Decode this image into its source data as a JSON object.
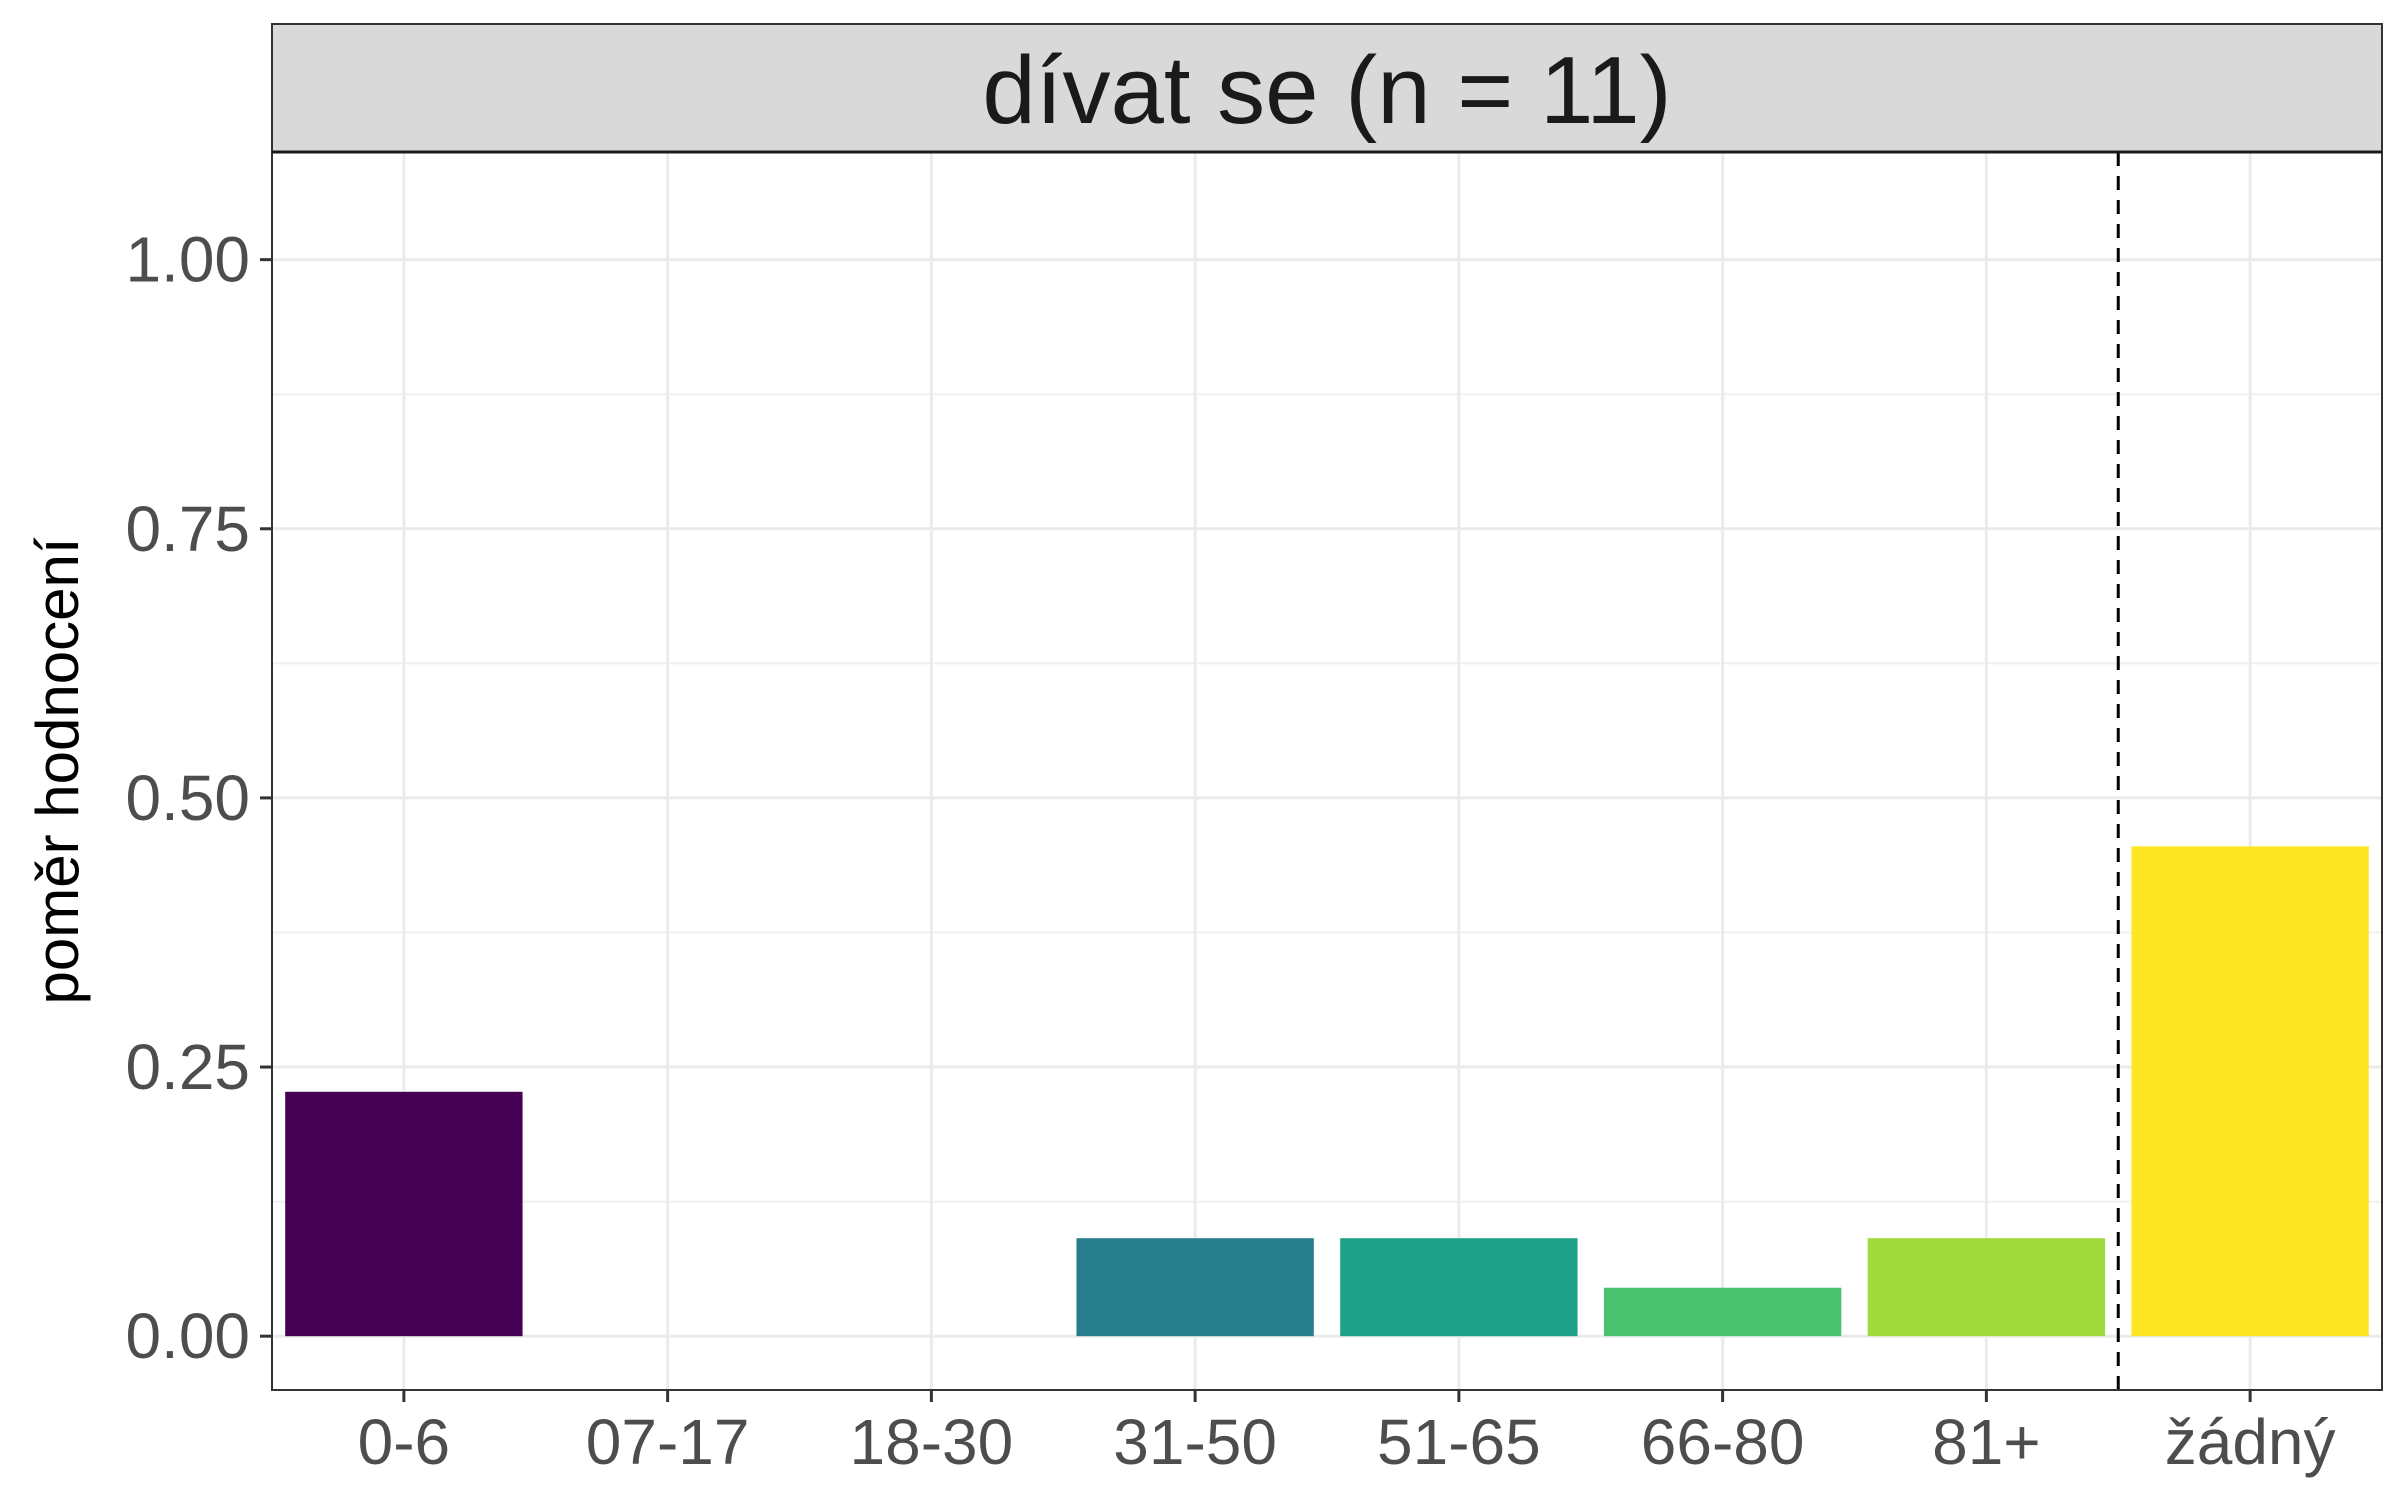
{
  "chart_data": {
    "type": "bar",
    "title": "dívat se (n = 11)",
    "xlabel": "",
    "ylabel": "poměr hodnocení",
    "categories": [
      "0-6",
      "07-17",
      "18-30",
      "31-50",
      "51-65",
      "66-80",
      "81+",
      "žádný"
    ],
    "values": [
      0.227,
      0.0,
      0.0,
      0.091,
      0.091,
      0.045,
      0.091,
      0.455
    ],
    "colors": [
      "#440154",
      "#46327E",
      "#365C8D",
      "#277F8E",
      "#1FA187",
      "#4AC16D",
      "#9FDA3A",
      "#FDE725"
    ],
    "ylim": [
      -0.05,
      1.1
    ],
    "yticks": [
      0.0,
      0.25,
      0.5,
      0.75,
      1.0
    ],
    "ytick_labels": [
      "0.00",
      "0.25",
      "0.50",
      "0.75",
      "1.00"
    ],
    "reference_line": {
      "style": "dashed",
      "between": [
        "81+",
        "žádný"
      ]
    },
    "grid": true,
    "legend": "none"
  }
}
